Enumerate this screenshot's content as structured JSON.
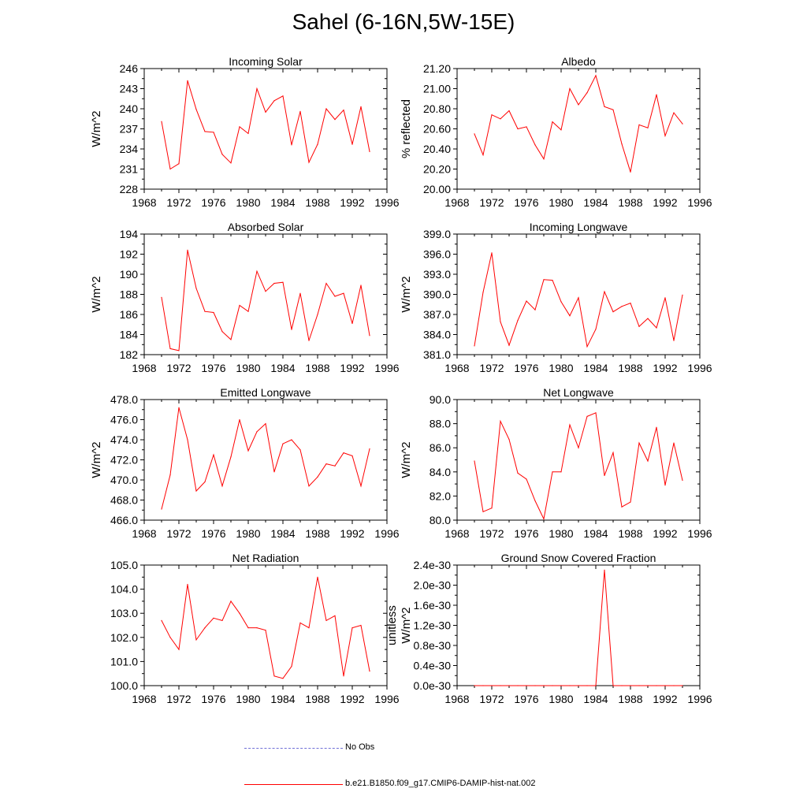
{
  "title": "Sahel (6-16N,5W-15E)",
  "colors": {
    "series": "#ff0000",
    "obs": "#6f6fd6",
    "axis": "#000000"
  },
  "legend": [
    {
      "label": "No Obs",
      "style": "dashed",
      "color": "#6f6fd6"
    },
    {
      "label": "b.e21.B1850.f09_g17.CMIP6-DAMIP-hist-nat.002",
      "style": "solid",
      "color": "#ff0000"
    }
  ],
  "chart_data": [
    {
      "type": "line",
      "title": "Incoming Solar",
      "ylabel": "W/m^2",
      "xlim": [
        1968,
        1996
      ],
      "xticks": [
        1968,
        1972,
        1976,
        1980,
        1984,
        1988,
        1992,
        1996
      ],
      "ylim": [
        228,
        246
      ],
      "yticks": [
        228,
        231,
        234,
        237,
        240,
        243,
        246
      ],
      "ytick_labels": [
        "228",
        "231",
        "234",
        "237",
        "240",
        "243",
        "246"
      ],
      "x": [
        1970,
        1971,
        1972,
        1973,
        1974,
        1975,
        1976,
        1977,
        1978,
        1979,
        1980,
        1981,
        1982,
        1983,
        1984,
        1985,
        1986,
        1987,
        1988,
        1989,
        1990,
        1991,
        1992,
        1993,
        1994
      ],
      "series": [
        {
          "values": [
            238.1,
            231.0,
            231.8,
            244.2,
            239.9,
            236.6,
            236.5,
            233.2,
            231.9,
            237.3,
            236.3,
            243.0,
            239.5,
            241.2,
            241.9,
            234.6,
            239.6,
            232.0,
            234.7,
            240.0,
            238.4,
            239.8,
            234.7,
            240.3,
            233.6
          ]
        }
      ]
    },
    {
      "type": "line",
      "title": "Albedo",
      "ylabel": "% reflected",
      "xlim": [
        1968,
        1996
      ],
      "xticks": [
        1968,
        1972,
        1976,
        1980,
        1984,
        1988,
        1992,
        1996
      ],
      "ylim": [
        20.0,
        21.2
      ],
      "yticks": [
        20.0,
        20.2,
        20.4,
        20.6,
        20.8,
        21.0,
        21.2
      ],
      "ytick_labels": [
        "20.00",
        "20.20",
        "20.40",
        "20.60",
        "20.80",
        "21.00",
        "21.20"
      ],
      "x": [
        1970,
        1971,
        1972,
        1973,
        1974,
        1975,
        1976,
        1977,
        1978,
        1979,
        1980,
        1981,
        1982,
        1983,
        1984,
        1985,
        1986,
        1987,
        1988,
        1989,
        1990,
        1991,
        1992,
        1993,
        1994
      ],
      "series": [
        {
          "values": [
            20.55,
            20.34,
            20.74,
            20.7,
            20.78,
            20.6,
            20.62,
            20.44,
            20.3,
            20.67,
            20.59,
            21.0,
            20.84,
            20.96,
            21.13,
            20.82,
            20.79,
            20.45,
            20.17,
            20.64,
            20.61,
            20.94,
            20.53,
            20.76,
            20.65
          ]
        }
      ]
    },
    {
      "type": "line",
      "title": "Absorbed Solar",
      "ylabel": "W/m^2",
      "xlim": [
        1968,
        1996
      ],
      "xticks": [
        1968,
        1972,
        1976,
        1980,
        1984,
        1988,
        1992,
        1996
      ],
      "ylim": [
        182,
        194
      ],
      "yticks": [
        182,
        184,
        186,
        188,
        190,
        192,
        194
      ],
      "ytick_labels": [
        "182",
        "184",
        "186",
        "188",
        "190",
        "192",
        "194"
      ],
      "x": [
        1970,
        1971,
        1972,
        1973,
        1974,
        1975,
        1976,
        1977,
        1978,
        1979,
        1980,
        1981,
        1982,
        1983,
        1984,
        1985,
        1986,
        1987,
        1988,
        1989,
        1990,
        1991,
        1992,
        1993,
        1994
      ],
      "series": [
        {
          "values": [
            187.7,
            182.6,
            182.4,
            192.4,
            188.6,
            186.3,
            186.2,
            184.3,
            183.5,
            186.9,
            186.3,
            190.3,
            188.3,
            189.1,
            189.2,
            184.5,
            188.1,
            183.4,
            186.0,
            189.1,
            187.8,
            188.1,
            185.1,
            188.9,
            183.9
          ]
        }
      ]
    },
    {
      "type": "line",
      "title": "Incoming Longwave",
      "ylabel": "W/m^2",
      "xlim": [
        1968,
        1996
      ],
      "xticks": [
        1968,
        1972,
        1976,
        1980,
        1984,
        1988,
        1992,
        1996
      ],
      "ylim": [
        381,
        399
      ],
      "yticks": [
        381,
        384,
        387,
        390,
        393,
        396,
        399
      ],
      "ytick_labels": [
        "381.0",
        "384.0",
        "387.0",
        "390.0",
        "393.0",
        "396.0",
        "399.0"
      ],
      "x": [
        1970,
        1971,
        1972,
        1973,
        1974,
        1975,
        1976,
        1977,
        1978,
        1979,
        1980,
        1981,
        1982,
        1983,
        1984,
        1985,
        1986,
        1987,
        1988,
        1989,
        1990,
        1991,
        1992,
        1993,
        1994
      ],
      "series": [
        {
          "values": [
            382.3,
            390.3,
            396.2,
            385.9,
            382.4,
            386.1,
            389.0,
            387.7,
            392.2,
            392.1,
            388.9,
            386.8,
            389.5,
            382.2,
            384.8,
            390.4,
            387.4,
            388.2,
            388.7,
            385.2,
            386.4,
            385.0,
            389.5,
            383.1,
            389.9
          ]
        }
      ]
    },
    {
      "type": "line",
      "title": "Emitted Longwave",
      "ylabel": "W/m^2",
      "xlim": [
        1968,
        1996
      ],
      "xticks": [
        1968,
        1972,
        1976,
        1980,
        1984,
        1988,
        1992,
        1996
      ],
      "ylim": [
        466,
        478
      ],
      "yticks": [
        466,
        468,
        470,
        472,
        474,
        476,
        478
      ],
      "ytick_labels": [
        "466.0",
        "468.0",
        "470.0",
        "472.0",
        "474.0",
        "476.0",
        "478.0"
      ],
      "x": [
        1970,
        1971,
        1972,
        1973,
        1974,
        1975,
        1976,
        1977,
        1978,
        1979,
        1980,
        1981,
        1982,
        1983,
        1984,
        1985,
        1986,
        1987,
        1988,
        1989,
        1990,
        1991,
        1992,
        1993,
        1994
      ],
      "series": [
        {
          "values": [
            467.1,
            470.5,
            477.2,
            474.0,
            468.9,
            469.8,
            472.5,
            469.4,
            472.3,
            476.0,
            472.9,
            474.8,
            475.6,
            470.8,
            473.6,
            474.0,
            473.0,
            469.4,
            470.3,
            471.6,
            471.4,
            472.7,
            472.4,
            469.4,
            473.1
          ]
        }
      ]
    },
    {
      "type": "line",
      "title": "Net Longwave",
      "ylabel": "W/m^2",
      "xlim": [
        1968,
        1996
      ],
      "xticks": [
        1968,
        1972,
        1976,
        1980,
        1984,
        1988,
        1992,
        1996
      ],
      "ylim": [
        80,
        90
      ],
      "yticks": [
        80,
        82,
        84,
        86,
        88,
        90
      ],
      "ytick_labels": [
        "80.0",
        "82.0",
        "84.0",
        "86.0",
        "88.0",
        "90.0"
      ],
      "x": [
        1970,
        1971,
        1972,
        1973,
        1974,
        1975,
        1976,
        1977,
        1978,
        1979,
        1980,
        1981,
        1982,
        1983,
        1984,
        1985,
        1986,
        1987,
        1988,
        1989,
        1990,
        1991,
        1992,
        1993,
        1994
      ],
      "series": [
        {
          "values": [
            84.9,
            80.7,
            81.0,
            88.2,
            86.7,
            83.9,
            83.4,
            81.6,
            80.1,
            84.0,
            84.0,
            87.9,
            86.0,
            88.6,
            88.9,
            83.7,
            85.6,
            81.1,
            81.5,
            86.4,
            84.9,
            87.7,
            82.9,
            86.4,
            83.3
          ]
        }
      ]
    },
    {
      "type": "line",
      "title": "Net Radiation",
      "ylabel": "W/m^2",
      "xlim": [
        1968,
        1996
      ],
      "xticks": [
        1968,
        1972,
        1976,
        1980,
        1984,
        1988,
        1992,
        1996
      ],
      "ylim": [
        100,
        105
      ],
      "yticks": [
        100,
        101,
        102,
        103,
        104,
        105
      ],
      "ytick_labels": [
        "100.0",
        "101.0",
        "102.0",
        "103.0",
        "104.0",
        "105.0"
      ],
      "x": [
        1970,
        1971,
        1972,
        1973,
        1974,
        1975,
        1976,
        1977,
        1978,
        1979,
        1980,
        1981,
        1982,
        1983,
        1984,
        1985,
        1986,
        1987,
        1988,
        1989,
        1990,
        1991,
        1992,
        1993,
        1994
      ],
      "series": [
        {
          "values": [
            102.7,
            102.0,
            101.5,
            104.2,
            101.9,
            102.4,
            102.8,
            102.7,
            103.5,
            103.0,
            102.4,
            102.4,
            102.3,
            100.4,
            100.3,
            100.8,
            102.6,
            102.4,
            104.5,
            102.7,
            102.9,
            100.4,
            102.4,
            102.5,
            100.6
          ]
        }
      ]
    },
    {
      "type": "line",
      "title": "Ground Snow Covered Fraction",
      "ylabel": "unitless",
      "xlim": [
        1968,
        1996
      ],
      "xticks": [
        1968,
        1972,
        1976,
        1980,
        1984,
        1988,
        1992,
        1996
      ],
      "ylim": [
        0,
        2.4
      ],
      "yticks": [
        0,
        0.4,
        0.8,
        1.2,
        1.6,
        2.0,
        2.4
      ],
      "ytick_labels": [
        "0.0e-30",
        "0.4e-30",
        "0.8e-30",
        "1.2e-30",
        "1.6e-30",
        "2.0e-30",
        "2.4e-30"
      ],
      "x": [
        1970,
        1971,
        1972,
        1973,
        1974,
        1975,
        1976,
        1977,
        1978,
        1979,
        1980,
        1981,
        1982,
        1983,
        1984,
        1985,
        1986,
        1987,
        1988,
        1989,
        1990,
        1991,
        1992,
        1993,
        1994
      ],
      "series": [
        {
          "values": [
            0,
            0,
            0,
            0,
            0,
            0,
            0,
            0,
            0,
            0,
            0,
            0,
            0,
            0,
            0,
            2.3,
            0,
            0,
            0,
            0,
            0,
            0,
            0,
            0,
            0
          ]
        }
      ]
    }
  ]
}
